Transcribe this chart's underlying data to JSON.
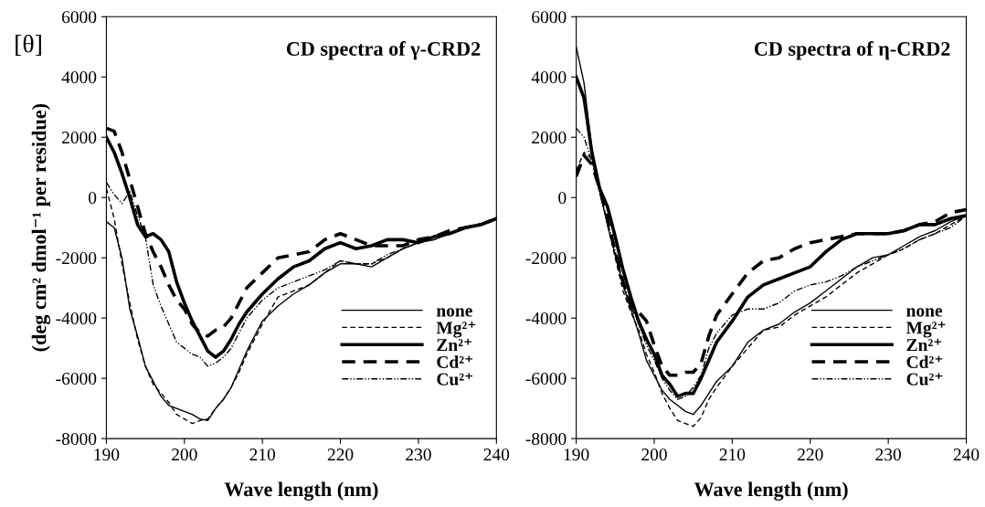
{
  "chart_data": [
    {
      "type": "line",
      "title": "CD spectra of γ-CRD2",
      "xlabel": "Wave length (nm)",
      "ylabel": "(deg cm² dmol⁻¹ per residue)",
      "annotations": [
        "[θ]"
      ],
      "x": [
        190,
        191,
        192,
        193,
        194,
        195,
        196,
        197,
        198,
        199,
        200,
        201,
        202,
        203,
        204,
        205,
        206,
        207,
        208,
        210,
        212,
        214,
        216,
        218,
        220,
        222,
        224,
        226,
        228,
        230,
        232,
        234,
        236,
        238,
        240
      ],
      "xlim": [
        190,
        240
      ],
      "xticks": [
        190,
        200,
        210,
        220,
        230,
        240
      ],
      "ylim": [
        -8000,
        6000
      ],
      "yticks": [
        -8000,
        -6000,
        -4000,
        -2000,
        0,
        2000,
        4000,
        6000
      ],
      "legend": "bottom right",
      "grid": false,
      "series": [
        {
          "name": "none",
          "color": "#000000",
          "line_style": "solid",
          "values": [
            -800,
            -1000,
            -2000,
            -3700,
            -4600,
            -5600,
            -6100,
            -6600,
            -6900,
            -7000,
            -7100,
            -7200,
            -7350,
            -7400,
            -7000,
            -6700,
            -6300,
            -5700,
            -5100,
            -4100,
            -3600,
            -3200,
            -2900,
            -2500,
            -2200,
            -2200,
            -2300,
            -2000,
            -1700,
            -1500,
            -1400,
            -1200,
            -1000,
            -900,
            -700
          ]
        },
        {
          "name": "Mg²⁺",
          "color": "#000000",
          "line_style": "dashed",
          "values": [
            300,
            -700,
            -2200,
            -3500,
            -4700,
            -5600,
            -6200,
            -6500,
            -6800,
            -7200,
            -7350,
            -7500,
            -7400,
            -7350,
            -7000,
            -6700,
            -6300,
            -5800,
            -5200,
            -4200,
            -3300,
            -3100,
            -2900,
            -2500,
            -2100,
            -2200,
            -2200,
            -2000,
            -1700,
            -1500,
            -1300,
            -1200,
            -1000,
            -900,
            -700
          ]
        },
        {
          "name": "Zn²⁺",
          "color": "#000000",
          "line_style": "solid",
          "values": [
            2000,
            1500,
            800,
            0,
            -900,
            -1300,
            -1200,
            -1400,
            -1800,
            -2800,
            -3500,
            -4100,
            -4600,
            -5100,
            -5300,
            -5100,
            -4700,
            -4200,
            -3800,
            -3200,
            -2700,
            -2300,
            -2100,
            -1700,
            -1500,
            -1700,
            -1600,
            -1400,
            -1400,
            -1500,
            -1300,
            -1200,
            -1000,
            -900,
            -700
          ]
        },
        {
          "name": "Cd²⁺",
          "color": "#000000",
          "line_style": "dashed",
          "values": [
            2300,
            2200,
            1500,
            600,
            -300,
            -1200,
            -1800,
            -2300,
            -2900,
            -3400,
            -3700,
            -4200,
            -4500,
            -4600,
            -4400,
            -4300,
            -4000,
            -3500,
            -3000,
            -2500,
            -2000,
            -1900,
            -1800,
            -1400,
            -1200,
            -1400,
            -1600,
            -1600,
            -1600,
            -1400,
            -1300,
            -1100,
            -1000,
            -900,
            -700
          ]
        },
        {
          "name": "Cu²⁺",
          "color": "#000000",
          "line_style": "dotted",
          "values": [
            500,
            100,
            -200,
            200,
            -600,
            -1300,
            -2900,
            -3600,
            -4200,
            -4800,
            -5000,
            -5200,
            -5300,
            -5600,
            -5500,
            -5300,
            -5000,
            -4500,
            -4000,
            -3400,
            -3000,
            -2800,
            -2600,
            -2400,
            -2100,
            -2200,
            -2200,
            -1900,
            -1700,
            -1500,
            -1400,
            -1200,
            -1000,
            -900,
            -700
          ]
        }
      ]
    },
    {
      "type": "line",
      "title": "CD spectra of η-CRD2",
      "xlabel": "Wave length (nm)",
      "x": [
        190,
        191,
        192,
        193,
        194,
        195,
        196,
        197,
        198,
        199,
        200,
        201,
        202,
        203,
        204,
        205,
        206,
        207,
        208,
        210,
        212,
        214,
        216,
        218,
        220,
        222,
        224,
        226,
        228,
        230,
        232,
        234,
        236,
        238,
        240
      ],
      "xlim": [
        190,
        240
      ],
      "xticks": [
        190,
        200,
        210,
        220,
        230,
        240
      ],
      "ylim": [
        -8000,
        6000
      ],
      "yticks": [
        -8000,
        -6000,
        -4000,
        -2000,
        0,
        2000,
        4000,
        6000
      ],
      "legend": "bottom right",
      "grid": false,
      "series": [
        {
          "name": "none",
          "color": "#000000",
          "line_style": "solid",
          "values": [
            5000,
            3800,
            1600,
            200,
            -900,
            -1900,
            -2900,
            -3700,
            -4500,
            -5400,
            -5900,
            -6400,
            -6700,
            -6900,
            -7100,
            -7200,
            -6900,
            -6500,
            -6100,
            -5600,
            -4800,
            -4400,
            -4200,
            -3800,
            -3500,
            -3100,
            -2700,
            -2300,
            -2000,
            -1900,
            -1600,
            -1300,
            -1100,
            -800,
            -600
          ]
        },
        {
          "name": "Mg²⁺",
          "color": "#000000",
          "line_style": "dashed",
          "values": [
            900,
            1500,
            1300,
            300,
            -900,
            -2000,
            -3100,
            -3800,
            -4400,
            -5200,
            -5800,
            -6500,
            -7000,
            -7400,
            -7500,
            -7600,
            -7300,
            -6700,
            -6300,
            -5600,
            -5000,
            -4400,
            -4300,
            -3900,
            -3600,
            -3300,
            -2900,
            -2500,
            -2200,
            -1900,
            -1700,
            -1400,
            -1200,
            -900,
            -600
          ]
        },
        {
          "name": "Zn²⁺",
          "color": "#000000",
          "line_style": "solid",
          "values": [
            4000,
            3300,
            1500,
            300,
            -300,
            -1300,
            -2400,
            -3300,
            -4100,
            -4700,
            -5200,
            -5900,
            -6200,
            -6600,
            -6500,
            -6500,
            -6000,
            -5400,
            -4800,
            -4100,
            -3300,
            -2900,
            -2700,
            -2500,
            -2300,
            -1800,
            -1400,
            -1200,
            -1200,
            -1200,
            -1100,
            -900,
            -900,
            -700,
            -600
          ]
        },
        {
          "name": "Cd²⁺",
          "color": "#000000",
          "line_style": "dashed",
          "values": [
            700,
            1400,
            1100,
            300,
            -700,
            -1800,
            -2800,
            -3600,
            -3800,
            -4100,
            -4900,
            -5600,
            -5900,
            -5900,
            -5800,
            -5800,
            -5500,
            -4600,
            -3900,
            -3200,
            -2500,
            -2100,
            -2000,
            -1700,
            -1500,
            -1400,
            -1300,
            -1200,
            -1200,
            -1200,
            -1100,
            -900,
            -800,
            -500,
            -400
          ]
        },
        {
          "name": "Cu²⁺",
          "color": "#000000",
          "line_style": "dotted",
          "values": [
            2300,
            2000,
            1200,
            200,
            -800,
            -1800,
            -2800,
            -3600,
            -4200,
            -4900,
            -5400,
            -6000,
            -6400,
            -6700,
            -6600,
            -6300,
            -5900,
            -5000,
            -4500,
            -3900,
            -3700,
            -3700,
            -3500,
            -3100,
            -2900,
            -2800,
            -2600,
            -2300,
            -2100,
            -1900,
            -1700,
            -1400,
            -1200,
            -1000,
            -600
          ]
        }
      ]
    }
  ]
}
